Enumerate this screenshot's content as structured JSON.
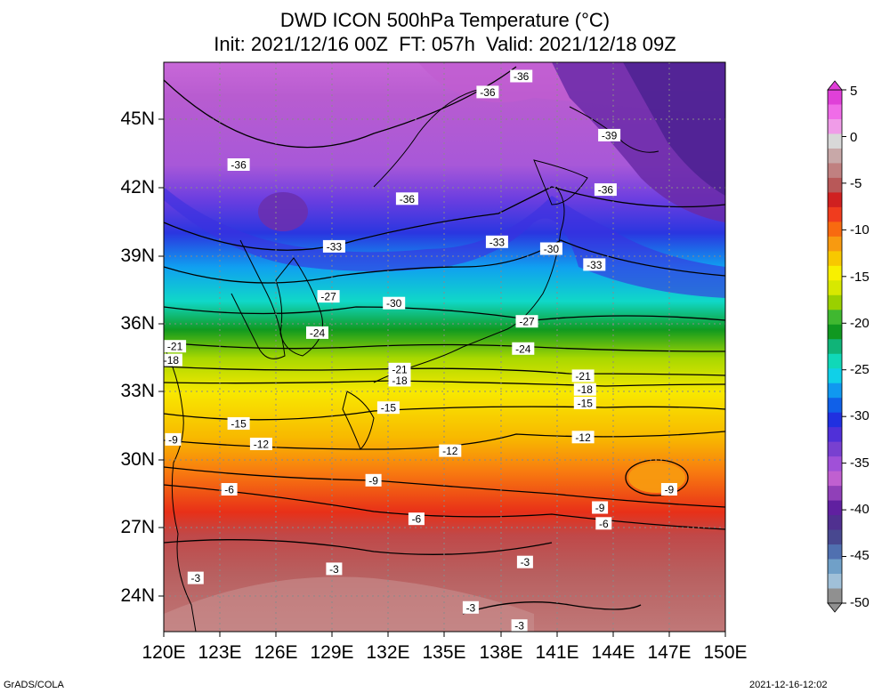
{
  "title": {
    "line1": "DWD ICON 500hPa Temperature (°C)",
    "line2": "Init: 2021/12/16 00Z  FT: 057h  Valid: 2021/12/18 09Z"
  },
  "axes": {
    "lat_labels": [
      "45N",
      "42N",
      "39N",
      "36N",
      "33N",
      "30N",
      "27N",
      "24N"
    ],
    "lon_labels": [
      "120E",
      "123E",
      "126E",
      "129E",
      "132E",
      "135E",
      "138E",
      "141E",
      "144E",
      "147E",
      "150E"
    ]
  },
  "colorbar": {
    "labels": [
      "5",
      "0",
      "-5",
      "-10",
      "-15",
      "-20",
      "-25",
      "-30",
      "-35",
      "-40",
      "-45",
      "-50"
    ],
    "colors": [
      "#e040d8",
      "#f06ce8",
      "#f09ce8",
      "#d8d8d8",
      "#c8a8a8",
      "#c08080",
      "#b85858",
      "#d02020",
      "#f03c1e",
      "#f86a10",
      "#f89a10",
      "#f8c800",
      "#f8f000",
      "#d8e800",
      "#9ad000",
      "#40b830",
      "#109820",
      "#10b478",
      "#10d8b8",
      "#10d0e8",
      "#1098f0",
      "#1060e8",
      "#2030e0",
      "#5030d8",
      "#7840d0",
      "#a050d8",
      "#c060d0",
      "#9040b8",
      "#6020a0",
      "#503090",
      "#484890",
      "#5070b0",
      "#70a0c8",
      "#a0c0d8",
      "#909090"
    ]
  },
  "contours": [
    {
      "label": "-36",
      "lon": 139.1,
      "lat": 46.9
    },
    {
      "label": "-36",
      "lon": 137.3,
      "lat": 46.2
    },
    {
      "label": "-39",
      "lon": 143.8,
      "lat": 44.3
    },
    {
      "label": "-36",
      "lon": 124.0,
      "lat": 43.0
    },
    {
      "label": "-36",
      "lon": 143.6,
      "lat": 41.9
    },
    {
      "label": "-36",
      "lon": 133.0,
      "lat": 41.5
    },
    {
      "label": "-33",
      "lon": 129.1,
      "lat": 39.4
    },
    {
      "label": "-33",
      "lon": 137.8,
      "lat": 39.6
    },
    {
      "label": "-30",
      "lon": 140.7,
      "lat": 39.3
    },
    {
      "label": "-33",
      "lon": 143.0,
      "lat": 38.6
    },
    {
      "label": "-27",
      "lon": 128.8,
      "lat": 37.2
    },
    {
      "label": "-30",
      "lon": 132.3,
      "lat": 36.9
    },
    {
      "label": "-27",
      "lon": 139.4,
      "lat": 36.1
    },
    {
      "label": "-24",
      "lon": 128.2,
      "lat": 35.6
    },
    {
      "label": "-24",
      "lon": 139.2,
      "lat": 34.9
    },
    {
      "label": "-21",
      "lon": 120.6,
      "lat": 35.0
    },
    {
      "label": "-18",
      "lon": 120.4,
      "lat": 34.4
    },
    {
      "label": "-21",
      "lon": 132.6,
      "lat": 34.0
    },
    {
      "label": "-18",
      "lon": 132.6,
      "lat": 33.5
    },
    {
      "label": "-21",
      "lon": 142.4,
      "lat": 33.7
    },
    {
      "label": "-18",
      "lon": 142.5,
      "lat": 33.1
    },
    {
      "label": "-15",
      "lon": 132.0,
      "lat": 32.3
    },
    {
      "label": "-15",
      "lon": 142.5,
      "lat": 32.5
    },
    {
      "label": "-15",
      "lon": 124.0,
      "lat": 31.6
    },
    {
      "label": "-9",
      "lon": 120.5,
      "lat": 30.9
    },
    {
      "label": "-12",
      "lon": 125.2,
      "lat": 30.7
    },
    {
      "label": "-12",
      "lon": 135.3,
      "lat": 30.4
    },
    {
      "label": "-12",
      "lon": 142.4,
      "lat": 31.0
    },
    {
      "label": "-9",
      "lon": 131.2,
      "lat": 29.1
    },
    {
      "label": "-9",
      "lon": 147.0,
      "lat": 28.7
    },
    {
      "label": "-6",
      "lon": 123.5,
      "lat": 28.7
    },
    {
      "label": "-6",
      "lon": 133.5,
      "lat": 27.4
    },
    {
      "label": "-9",
      "lon": 143.3,
      "lat": 27.9
    },
    {
      "label": "-6",
      "lon": 143.5,
      "lat": 27.2
    },
    {
      "label": "-3",
      "lon": 129.1,
      "lat": 25.2
    },
    {
      "label": "-3",
      "lon": 121.7,
      "lat": 24.8
    },
    {
      "label": "-3",
      "lon": 139.3,
      "lat": 25.5
    },
    {
      "label": "-3",
      "lon": 136.4,
      "lat": 23.5
    },
    {
      "label": "-3",
      "lon": 139.0,
      "lat": 22.7
    }
  ],
  "footer": {
    "left": "GrADS/COLA",
    "right": "2021-12-16-12:02"
  }
}
